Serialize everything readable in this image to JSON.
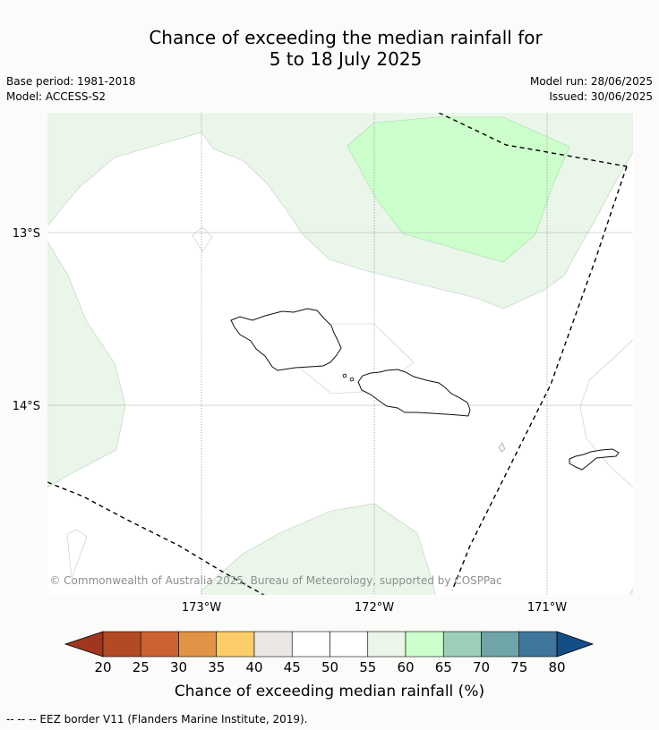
{
  "title_line1": "Chance of exceeding the median rainfall for",
  "title_line2": "5 to 18 July 2025",
  "meta": {
    "base_period": "Base period: 1981-2018",
    "model": "Model: ACCESS-S2",
    "model_run": "Model run: 28/06/2025",
    "issued": "Issued: 30/06/2025"
  },
  "map": {
    "lat_labels": [
      "13°S",
      "14°S"
    ],
    "lon_labels": [
      "173°W",
      "172°W",
      "171°W"
    ],
    "copyright": "© Commonwealth of Australia 2025, Bureau of Meteorology, supported by COSPPac"
  },
  "colorbar": {
    "label": "Chance of exceeding median rainfall (%)",
    "ticks": [
      "20",
      "25",
      "30",
      "35",
      "40",
      "45",
      "50",
      "55",
      "60",
      "65",
      "70",
      "75",
      "80"
    ],
    "colors": [
      "#a0361f",
      "#b34a25",
      "#cc6230",
      "#e19445",
      "#fdcd6a",
      "#ebe8e4",
      "#ffffff",
      "#ffffff",
      "#e9f6e9",
      "#ccffcc",
      "#9dcfb8",
      "#6fa4a8",
      "#3f7699",
      "#134e86"
    ]
  },
  "footer": "-- -- -- EEZ border V11 (Flanders Marine Institute, 2019)."
}
